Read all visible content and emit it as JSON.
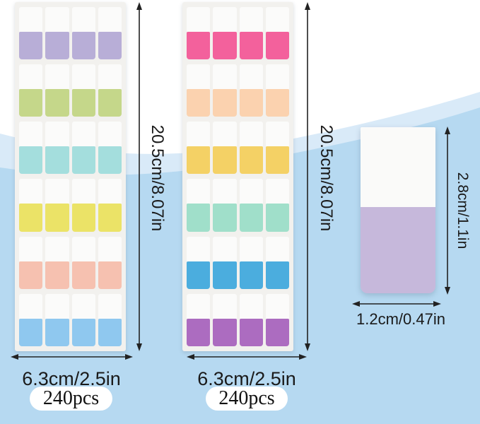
{
  "background": {
    "white": "#ffffff",
    "wave_band_color": "#d9eaf8",
    "wave_main_color": "#b6d9f1"
  },
  "sheets": [
    {
      "id": "left",
      "sheet_color": "#f2f1ee",
      "tab_top_color": "#fbfbfa",
      "columns": 4,
      "rows": 6,
      "row_colors": [
        "#b8aed7",
        "#c5d78a",
        "#a4dedd",
        "#ebe367",
        "#f6c1b0",
        "#8fc8ef"
      ],
      "row_names": [
        "lavender",
        "green",
        "aqua",
        "yellow",
        "peach",
        "sky-blue"
      ],
      "height_label": "20.5cm/8.07in",
      "width_label": "6.3cm/2.5in",
      "count_label": "240pcs"
    },
    {
      "id": "right",
      "sheet_color": "#f2f1ee",
      "tab_top_color": "#fbfbfa",
      "columns": 4,
      "rows": 6,
      "row_colors": [
        "#f3619c",
        "#fbd2af",
        "#f4d165",
        "#a0dfca",
        "#4badde",
        "#ac6cc0"
      ],
      "row_names": [
        "hot-pink",
        "peach",
        "golden-yellow",
        "mint",
        "blue",
        "purple"
      ],
      "height_label": "20.5cm/8.07in",
      "width_label": "6.3cm/2.5in",
      "count_label": "240pcs"
    }
  ],
  "single_tab": {
    "top_color": "#fafaf9",
    "bottom_color": "#c6b8db",
    "height_label": "2.8cm/1.1in",
    "width_label": "1.2cm/0.47in"
  }
}
